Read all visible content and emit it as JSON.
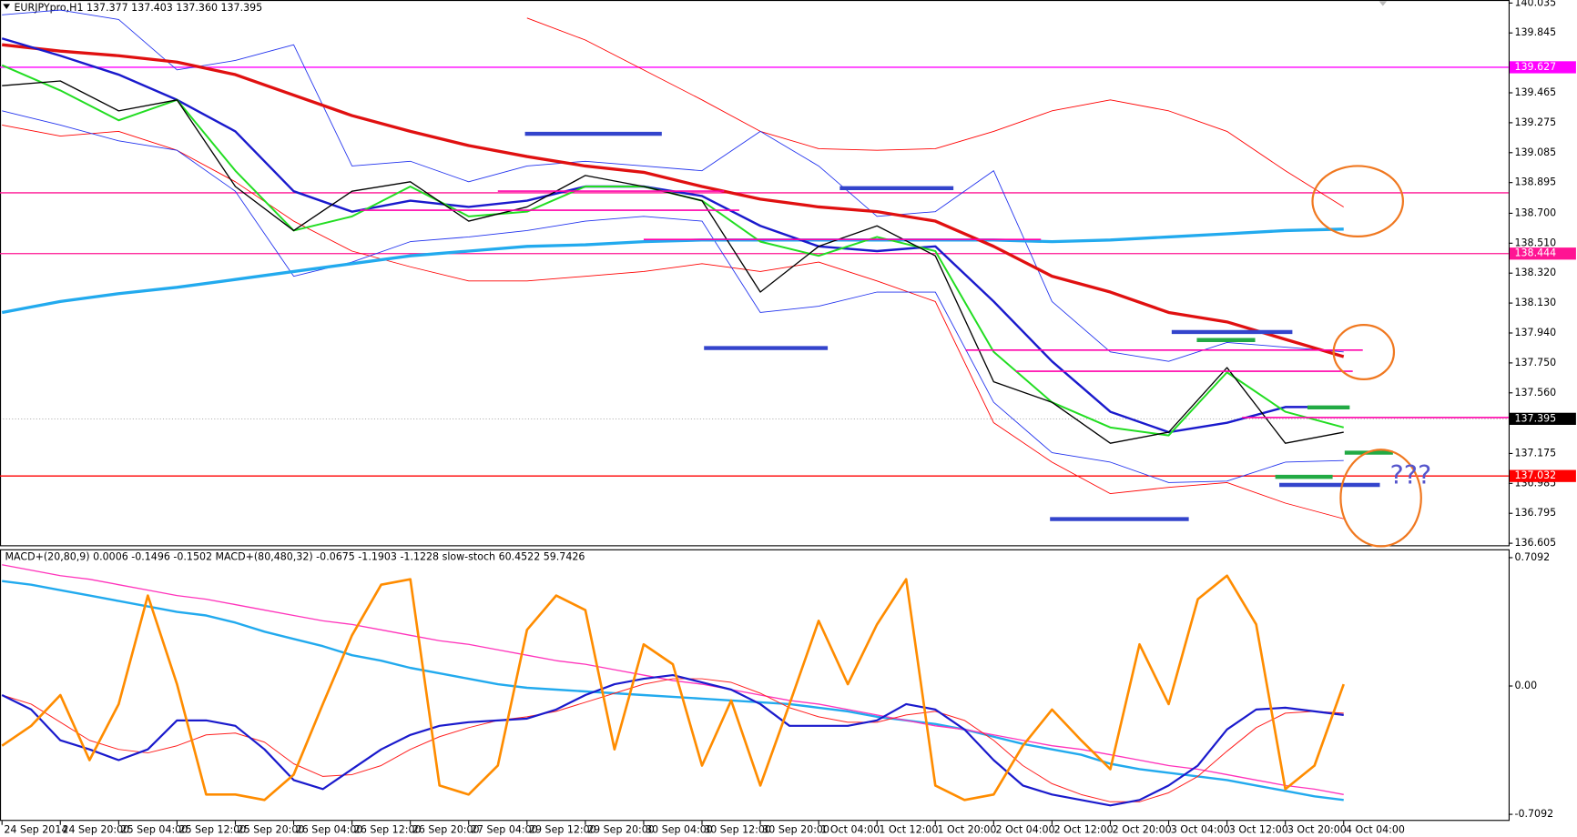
{
  "chart_data": [
    {
      "type": "line",
      "title": "EURJPYpro,H1  137.377 137.403 137.360 137.395",
      "annotation": "???",
      "categories": [
        null,
        null,
        null,
        null,
        null,
        null,
        null,
        null,
        null,
        null,
        null,
        null,
        null,
        null,
        null,
        null,
        null,
        null,
        null,
        null,
        null,
        null,
        null,
        null
      ],
      "ylim": [
        136.605,
        140.035
      ],
      "yticks": [
        140.035,
        139.845,
        139.465,
        139.275,
        139.085,
        138.895,
        {
          "value": 138.7,
          "label": "138.700"
        },
        {
          "value": 138.51,
          "label": "138.510"
        },
        {
          "value": 138.32,
          "label": "138.320"
        },
        {
          "value": 138.13,
          "label": "138.130"
        },
        {
          "value": 137.94,
          "label": "137.940"
        },
        {
          "value": 137.75,
          "label": "137.750"
        },
        {
          "value": 137.56,
          "label": "137.560"
        },
        137.175,
        136.985,
        136.795,
        136.605
      ],
      "levels": [
        {
          "value": 139.627,
          "color": "#ff00ff",
          "labeled": true,
          "dash": false
        },
        {
          "value": 138.83,
          "color": "#ff1493",
          "labeled": false,
          "dash": false
        },
        {
          "value": 138.444,
          "color": "#ff1493",
          "labeled": true,
          "dash": false
        },
        {
          "value": 137.395,
          "color": "#000000",
          "labeled": true,
          "dash": true
        },
        {
          "value": 137.032,
          "color": "#ff0000",
          "labeled": true,
          "dash": false
        }
      ],
      "series": [
        {
          "color": "#ff0000",
          "width": 0.8,
          "values": [
            null,
            null,
            null,
            null,
            null,
            null,
            null,
            null,
            null,
            139.94,
            139.8,
            139.61,
            139.42,
            139.22,
            139.11,
            139.1,
            139.11,
            139.22,
            139.35,
            139.42,
            139.35,
            139.22,
            138.97,
            138.74
          ]
        },
        {
          "color": "#ff0000",
          "width": 0.8,
          "values": [
            139.26,
            139.19,
            139.22,
            139.1,
            138.9,
            138.65,
            138.46,
            138.36,
            138.27,
            138.27,
            138.3,
            138.33,
            138.38,
            138.33,
            138.39,
            138.27,
            138.14,
            137.37,
            137.12,
            136.92,
            136.96,
            136.99,
            136.86,
            136.76
          ]
        },
        {
          "color": "#2233ee",
          "width": 0.8,
          "values": [
            139.96,
            139.99,
            139.93,
            139.61,
            139.67,
            139.77,
            139.0,
            139.03,
            138.9,
            139.0,
            139.03,
            139.0,
            138.97,
            139.22,
            139.0,
            138.68,
            138.71,
            138.97,
            138.14,
            137.82,
            137.76,
            137.88,
            137.85,
            137.82
          ]
        },
        {
          "color": "#2233ee",
          "width": 0.8,
          "values": [
            139.35,
            139.26,
            139.16,
            139.1,
            138.84,
            138.3,
            138.39,
            138.52,
            138.55,
            138.59,
            138.65,
            138.68,
            138.65,
            138.07,
            138.11,
            138.2,
            138.2,
            137.5,
            137.18,
            137.12,
            136.99,
            137.0,
            137.12,
            137.13
          ]
        },
        {
          "color": "#22aaee",
          "width": 3,
          "values": [
            138.07,
            138.14,
            138.19,
            138.23,
            138.28,
            138.33,
            138.38,
            138.43,
            138.46,
            138.49,
            138.5,
            138.52,
            138.53,
            138.53,
            138.53,
            138.53,
            138.53,
            138.53,
            138.52,
            138.53,
            138.55,
            138.57,
            138.59,
            138.6
          ]
        },
        {
          "color": "#e01010",
          "width": 3,
          "values": [
            139.77,
            139.73,
            139.7,
            139.66,
            139.58,
            139.45,
            139.32,
            139.22,
            139.13,
            139.06,
            139.0,
            138.96,
            138.87,
            138.79,
            138.74,
            138.71,
            138.65,
            138.49,
            138.3,
            138.2,
            138.07,
            138.01,
            137.9,
            137.79
          ]
        },
        {
          "color": "#1a1acc",
          "width": 2.2,
          "values": [
            139.81,
            139.7,
            139.58,
            139.42,
            139.22,
            138.84,
            138.71,
            138.78,
            138.74,
            138.78,
            138.87,
            138.87,
            138.81,
            138.62,
            138.49,
            138.46,
            138.49,
            138.14,
            137.76,
            137.44,
            137.31,
            137.37,
            137.47,
            137.47
          ]
        },
        {
          "color": "#22dd22",
          "width": 1.8,
          "values": [
            139.64,
            139.48,
            139.29,
            139.42,
            138.97,
            138.59,
            138.68,
            138.87,
            138.68,
            138.71,
            138.87,
            138.87,
            138.78,
            138.52,
            138.43,
            138.55,
            138.46,
            137.82,
            137.5,
            137.34,
            137.29,
            137.69,
            137.44,
            137.34
          ]
        },
        {
          "color": "#000000",
          "width": 1.2,
          "values": [
            139.51,
            139.54,
            139.35,
            139.42,
            138.87,
            138.59,
            138.84,
            138.9,
            138.65,
            138.74,
            138.94,
            138.87,
            138.78,
            138.2,
            138.49,
            138.62,
            138.43,
            137.63,
            137.5,
            137.24,
            137.31,
            137.72,
            137.24,
            137.31
          ]
        }
      ]
    },
    {
      "type": "line",
      "title": "MACD+(20,80,9) 0.0006 -0.1496 -0.1502  MACD+(80,480,32) -0.0675 -1.1903 -1.1228  slow-stoch 60.4522 59.7426",
      "categories": [
        "24 Sep 2014",
        null,
        "24 Sep 20:00",
        null,
        "25 Sep 04:00",
        null,
        "25 Sep 12:00",
        null,
        "25 Sep 20:00",
        null,
        "26 Sep 04:00",
        null,
        "26 Sep 12:00",
        null,
        "26 Sep 20:00",
        null,
        "27 Sep 04:00",
        null,
        "29 Sep 12:00",
        null,
        "29 Sep 20:00",
        null,
        "30 Sep 04:00",
        null,
        "30 Sep 12:00",
        null,
        "30 Sep 20:00",
        null,
        "1 Oct 04:00",
        null,
        "1 Oct 12:00",
        null,
        "1 Oct 20:00",
        null,
        "2 Oct 04:00",
        null,
        "2 Oct 12:00",
        null,
        "2 Oct 20:00",
        null,
        "3 Oct 04:00",
        null,
        "3 Oct 12:00",
        null,
        "3 Oct 20:00",
        null,
        "4 Oct 04:00"
      ],
      "ylim": [
        -0.74,
        0.75
      ],
      "yticks": [
        0.7092,
        {
          "value": 0,
          "label": "0.00"
        },
        -0.7092
      ],
      "series": [
        {
          "color": "#22aaee",
          "width": 2.2,
          "values": [
            0.58,
            0.56,
            0.53,
            0.5,
            0.47,
            0.44,
            0.41,
            0.39,
            0.35,
            0.3,
            0.26,
            0.22,
            0.17,
            0.14,
            0.1,
            0.07,
            0.04,
            0.01,
            -0.01,
            -0.02,
            -0.03,
            -0.04,
            -0.05,
            -0.06,
            -0.07,
            -0.08,
            -0.09,
            -0.1,
            -0.12,
            -0.14,
            -0.17,
            -0.19,
            -0.21,
            -0.24,
            -0.28,
            -0.32,
            -0.35,
            -0.38,
            -0.43,
            -0.46,
            -0.48,
            -0.5,
            -0.52,
            -0.55,
            -0.58,
            -0.61,
            -0.63
          ]
        },
        {
          "color": "#ff33bb",
          "width": 1.2,
          "values": [
            0.67,
            0.64,
            0.61,
            0.59,
            0.56,
            0.53,
            0.5,
            0.48,
            0.45,
            0.42,
            0.39,
            0.36,
            0.34,
            0.31,
            0.28,
            0.25,
            0.23,
            0.2,
            0.17,
            0.14,
            0.12,
            0.09,
            0.06,
            0.03,
            0.01,
            -0.02,
            -0.05,
            -0.08,
            -0.1,
            -0.13,
            -0.16,
            -0.19,
            -0.22,
            -0.24,
            -0.27,
            -0.3,
            -0.33,
            -0.35,
            -0.38,
            -0.41,
            -0.44,
            -0.46,
            -0.49,
            -0.52,
            -0.55,
            -0.57,
            -0.6
          ]
        },
        {
          "color": "#ff2020",
          "width": 0.9,
          "values": [
            -0.05,
            -0.1,
            -0.2,
            -0.3,
            -0.35,
            -0.37,
            -0.33,
            -0.27,
            -0.26,
            -0.31,
            -0.43,
            -0.5,
            -0.49,
            -0.44,
            -0.35,
            -0.28,
            -0.23,
            -0.19,
            -0.17,
            -0.14,
            -0.09,
            -0.04,
            0.01,
            0.04,
            0.04,
            0.02,
            -0.04,
            -0.12,
            -0.17,
            -0.2,
            -0.2,
            -0.16,
            -0.14,
            -0.19,
            -0.3,
            -0.44,
            -0.54,
            -0.6,
            -0.64,
            -0.64,
            -0.59,
            -0.5,
            -0.36,
            -0.23,
            -0.15,
            -0.14,
            -0.15
          ]
        },
        {
          "color": "#1a1acc",
          "width": 2,
          "values": [
            -0.05,
            -0.13,
            -0.3,
            -0.35,
            -0.41,
            -0.35,
            -0.19,
            -0.19,
            -0.22,
            -0.35,
            -0.52,
            -0.57,
            -0.46,
            -0.35,
            -0.27,
            -0.22,
            -0.2,
            -0.19,
            -0.18,
            -0.13,
            -0.05,
            0.01,
            0.04,
            0.06,
            0.02,
            -0.02,
            -0.1,
            -0.22,
            -0.22,
            -0.22,
            -0.19,
            -0.1,
            -0.13,
            -0.24,
            -0.41,
            -0.55,
            -0.6,
            -0.63,
            -0.66,
            -0.63,
            -0.55,
            -0.44,
            -0.24,
            -0.13,
            -0.12,
            -0.14,
            -0.16
          ]
        },
        {
          "color": "#ff8c00",
          "width": 2.4,
          "values": [
            -0.33,
            -0.22,
            -0.05,
            -0.41,
            -0.1,
            0.5,
            0.01,
            -0.6,
            -0.6,
            -0.63,
            -0.49,
            -0.1,
            0.28,
            0.56,
            0.59,
            -0.55,
            -0.6,
            -0.44,
            0.31,
            0.5,
            0.42,
            -0.35,
            0.23,
            0.12,
            -0.44,
            -0.08,
            -0.55,
            -0.1,
            0.36,
            0.01,
            0.34,
            0.59,
            -0.55,
            -0.63,
            -0.6,
            -0.33,
            -0.13,
            -0.3,
            -0.46,
            0.23,
            -0.1,
            0.48,
            0.61,
            0.34,
            -0.57,
            -0.44,
            0.01
          ]
        }
      ]
    }
  ]
}
